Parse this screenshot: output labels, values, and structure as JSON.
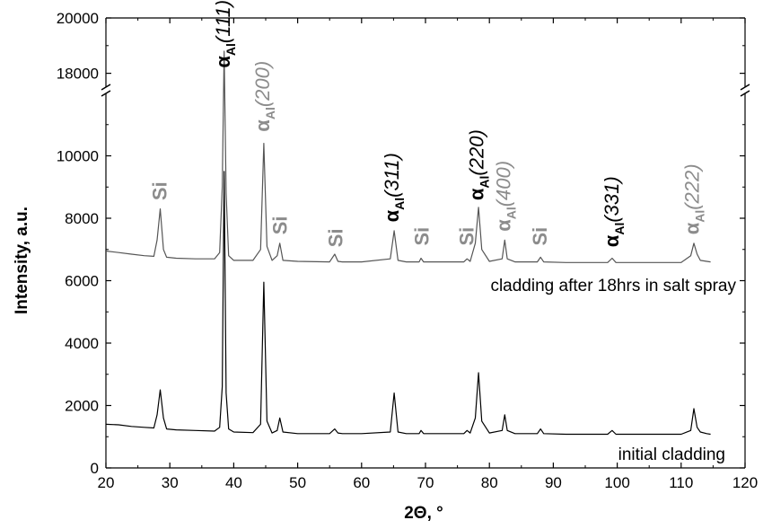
{
  "chart_data": {
    "type": "line",
    "xlabel": "2Θ, °",
    "ylabel": "Intensity, a.u.",
    "xlim": [
      20,
      120
    ],
    "x_ticks": [
      20,
      30,
      40,
      50,
      60,
      70,
      80,
      90,
      100,
      110,
      120
    ],
    "ylim": [
      0,
      20000
    ],
    "y_break": {
      "from": 12000,
      "to": 17500
    },
    "y_ticks": [
      0,
      2000,
      4000,
      6000,
      8000,
      10000,
      18000,
      20000
    ],
    "series": [
      {
        "name": "initial cladding",
        "color": "#000000",
        "x": [
          20,
          22,
          24,
          26,
          27.5,
          28,
          28.5,
          29,
          29.5,
          31,
          34,
          37,
          37.8,
          38.2,
          38.5,
          38.8,
          39.2,
          40,
          43,
          44.2,
          44.7,
          45.2,
          46,
          46.8,
          47.2,
          47.7,
          50,
          55,
          55.8,
          56.3,
          57,
          60,
          64.5,
          65.1,
          65.7,
          67,
          69,
          69.3,
          69.7,
          72,
          76,
          76.5,
          77,
          77.8,
          78.3,
          78.8,
          80,
          82,
          82.4,
          82.8,
          84,
          87.5,
          88,
          88.5,
          92,
          98.5,
          99.2,
          99.8,
          105,
          110,
          111.5,
          112,
          112.5,
          113,
          114,
          114.6
        ],
        "y": [
          1400,
          1380,
          1330,
          1300,
          1280,
          1700,
          2500,
          1600,
          1250,
          1220,
          1200,
          1180,
          1300,
          2600,
          9500,
          2400,
          1250,
          1150,
          1130,
          1400,
          5950,
          1500,
          1120,
          1200,
          1600,
          1150,
          1100,
          1100,
          1250,
          1120,
          1100,
          1100,
          1150,
          2400,
          1150,
          1100,
          1100,
          1200,
          1100,
          1100,
          1100,
          1200,
          1120,
          1600,
          3050,
          1500,
          1120,
          1200,
          1700,
          1200,
          1100,
          1100,
          1250,
          1100,
          1080,
          1080,
          1200,
          1080,
          1080,
          1080,
          1200,
          1900,
          1300,
          1150,
          1100,
          1080
        ]
      },
      {
        "name": "cladding after 18hrs in salt spray",
        "color": "#555555",
        "x": [
          20,
          22,
          24,
          26,
          27.5,
          28,
          28.5,
          29,
          29.5,
          31,
          34,
          37,
          37.8,
          38.2,
          38.5,
          38.8,
          39.2,
          40,
          43,
          44.2,
          44.7,
          45.2,
          46,
          46.8,
          47.2,
          47.7,
          50,
          55,
          55.8,
          56.3,
          57,
          60,
          64.5,
          65.1,
          65.7,
          67,
          69,
          69.3,
          69.7,
          72,
          76,
          76.5,
          77,
          77.8,
          78.3,
          78.8,
          80,
          82,
          82.4,
          82.8,
          84,
          87.5,
          88,
          88.5,
          92,
          98.5,
          99.2,
          99.8,
          105,
          110,
          111.5,
          112,
          112.5,
          113,
          114,
          114.6
        ],
        "y": [
          6950,
          6900,
          6850,
          6800,
          6780,
          7300,
          8300,
          7000,
          6750,
          6720,
          6700,
          6700,
          6900,
          9000,
          18800,
          8800,
          6800,
          6650,
          6650,
          7000,
          10400,
          7100,
          6650,
          6800,
          7200,
          6650,
          6620,
          6600,
          6850,
          6620,
          6600,
          6600,
          6700,
          7600,
          6650,
          6600,
          6600,
          6720,
          6600,
          6600,
          6600,
          6700,
          6620,
          7200,
          8350,
          7000,
          6620,
          6700,
          7300,
          6700,
          6600,
          6600,
          6750,
          6600,
          6580,
          6580,
          6720,
          6580,
          6580,
          6580,
          6800,
          7200,
          6850,
          6650,
          6620,
          6600
        ]
      }
    ],
    "series_labels": [
      "cladding after 18hrs in salt spray",
      "initial cladding"
    ],
    "annotations": [
      {
        "text": "Si",
        "x": 28.5,
        "y": 8400,
        "color": "#8c8c8c",
        "bold": true,
        "rotated": true
      },
      {
        "text": "α",
        "sub": "Al",
        "tail": "(111)",
        "x": 38.4,
        "y": 18000,
        "color": "#000000",
        "rotated": true
      },
      {
        "text": "α",
        "sub": "Al",
        "tail": "(200)",
        "x": 44.6,
        "y": 10600,
        "color": "#8c8c8c",
        "rotated": true
      },
      {
        "text": "Si",
        "x": 47.3,
        "y": 7300,
        "color": "#8c8c8c",
        "rotated": true
      },
      {
        "text": "Si",
        "x": 56.0,
        "y": 6900,
        "color": "#8c8c8c",
        "rotated": true
      },
      {
        "text": "α",
        "sub": "Al",
        "tail": "(311)",
        "x": 64.8,
        "y": 7700,
        "color": "#000000",
        "rotated": true
      },
      {
        "text": "Si",
        "x": 69.5,
        "y": 6950,
        "color": "#8c8c8c",
        "rotated": true
      },
      {
        "text": "Si",
        "x": 76.5,
        "y": 6950,
        "color": "#8c8c8c",
        "rotated": true
      },
      {
        "text": "α",
        "sub": "Al",
        "tail": "(220)",
        "x": 78.1,
        "y": 8400,
        "color": "#000000",
        "rotated": true
      },
      {
        "text": "α",
        "sub": "Al",
        "tail": "(400)",
        "x": 82.3,
        "y": 7400,
        "color": "#8c8c8c",
        "rotated": true
      },
      {
        "text": "Si",
        "x": 88.0,
        "y": 6950,
        "color": "#8c8c8c",
        "rotated": true
      },
      {
        "text": "α",
        "sub": "Al",
        "tail": "(331)",
        "x": 99.2,
        "y": 6900,
        "color": "#000000",
        "rotated": true
      },
      {
        "text": "α",
        "sub": "Al",
        "tail": "(222)",
        "x": 111.8,
        "y": 7300,
        "color": "#8c8c8c",
        "rotated": true
      }
    ]
  }
}
